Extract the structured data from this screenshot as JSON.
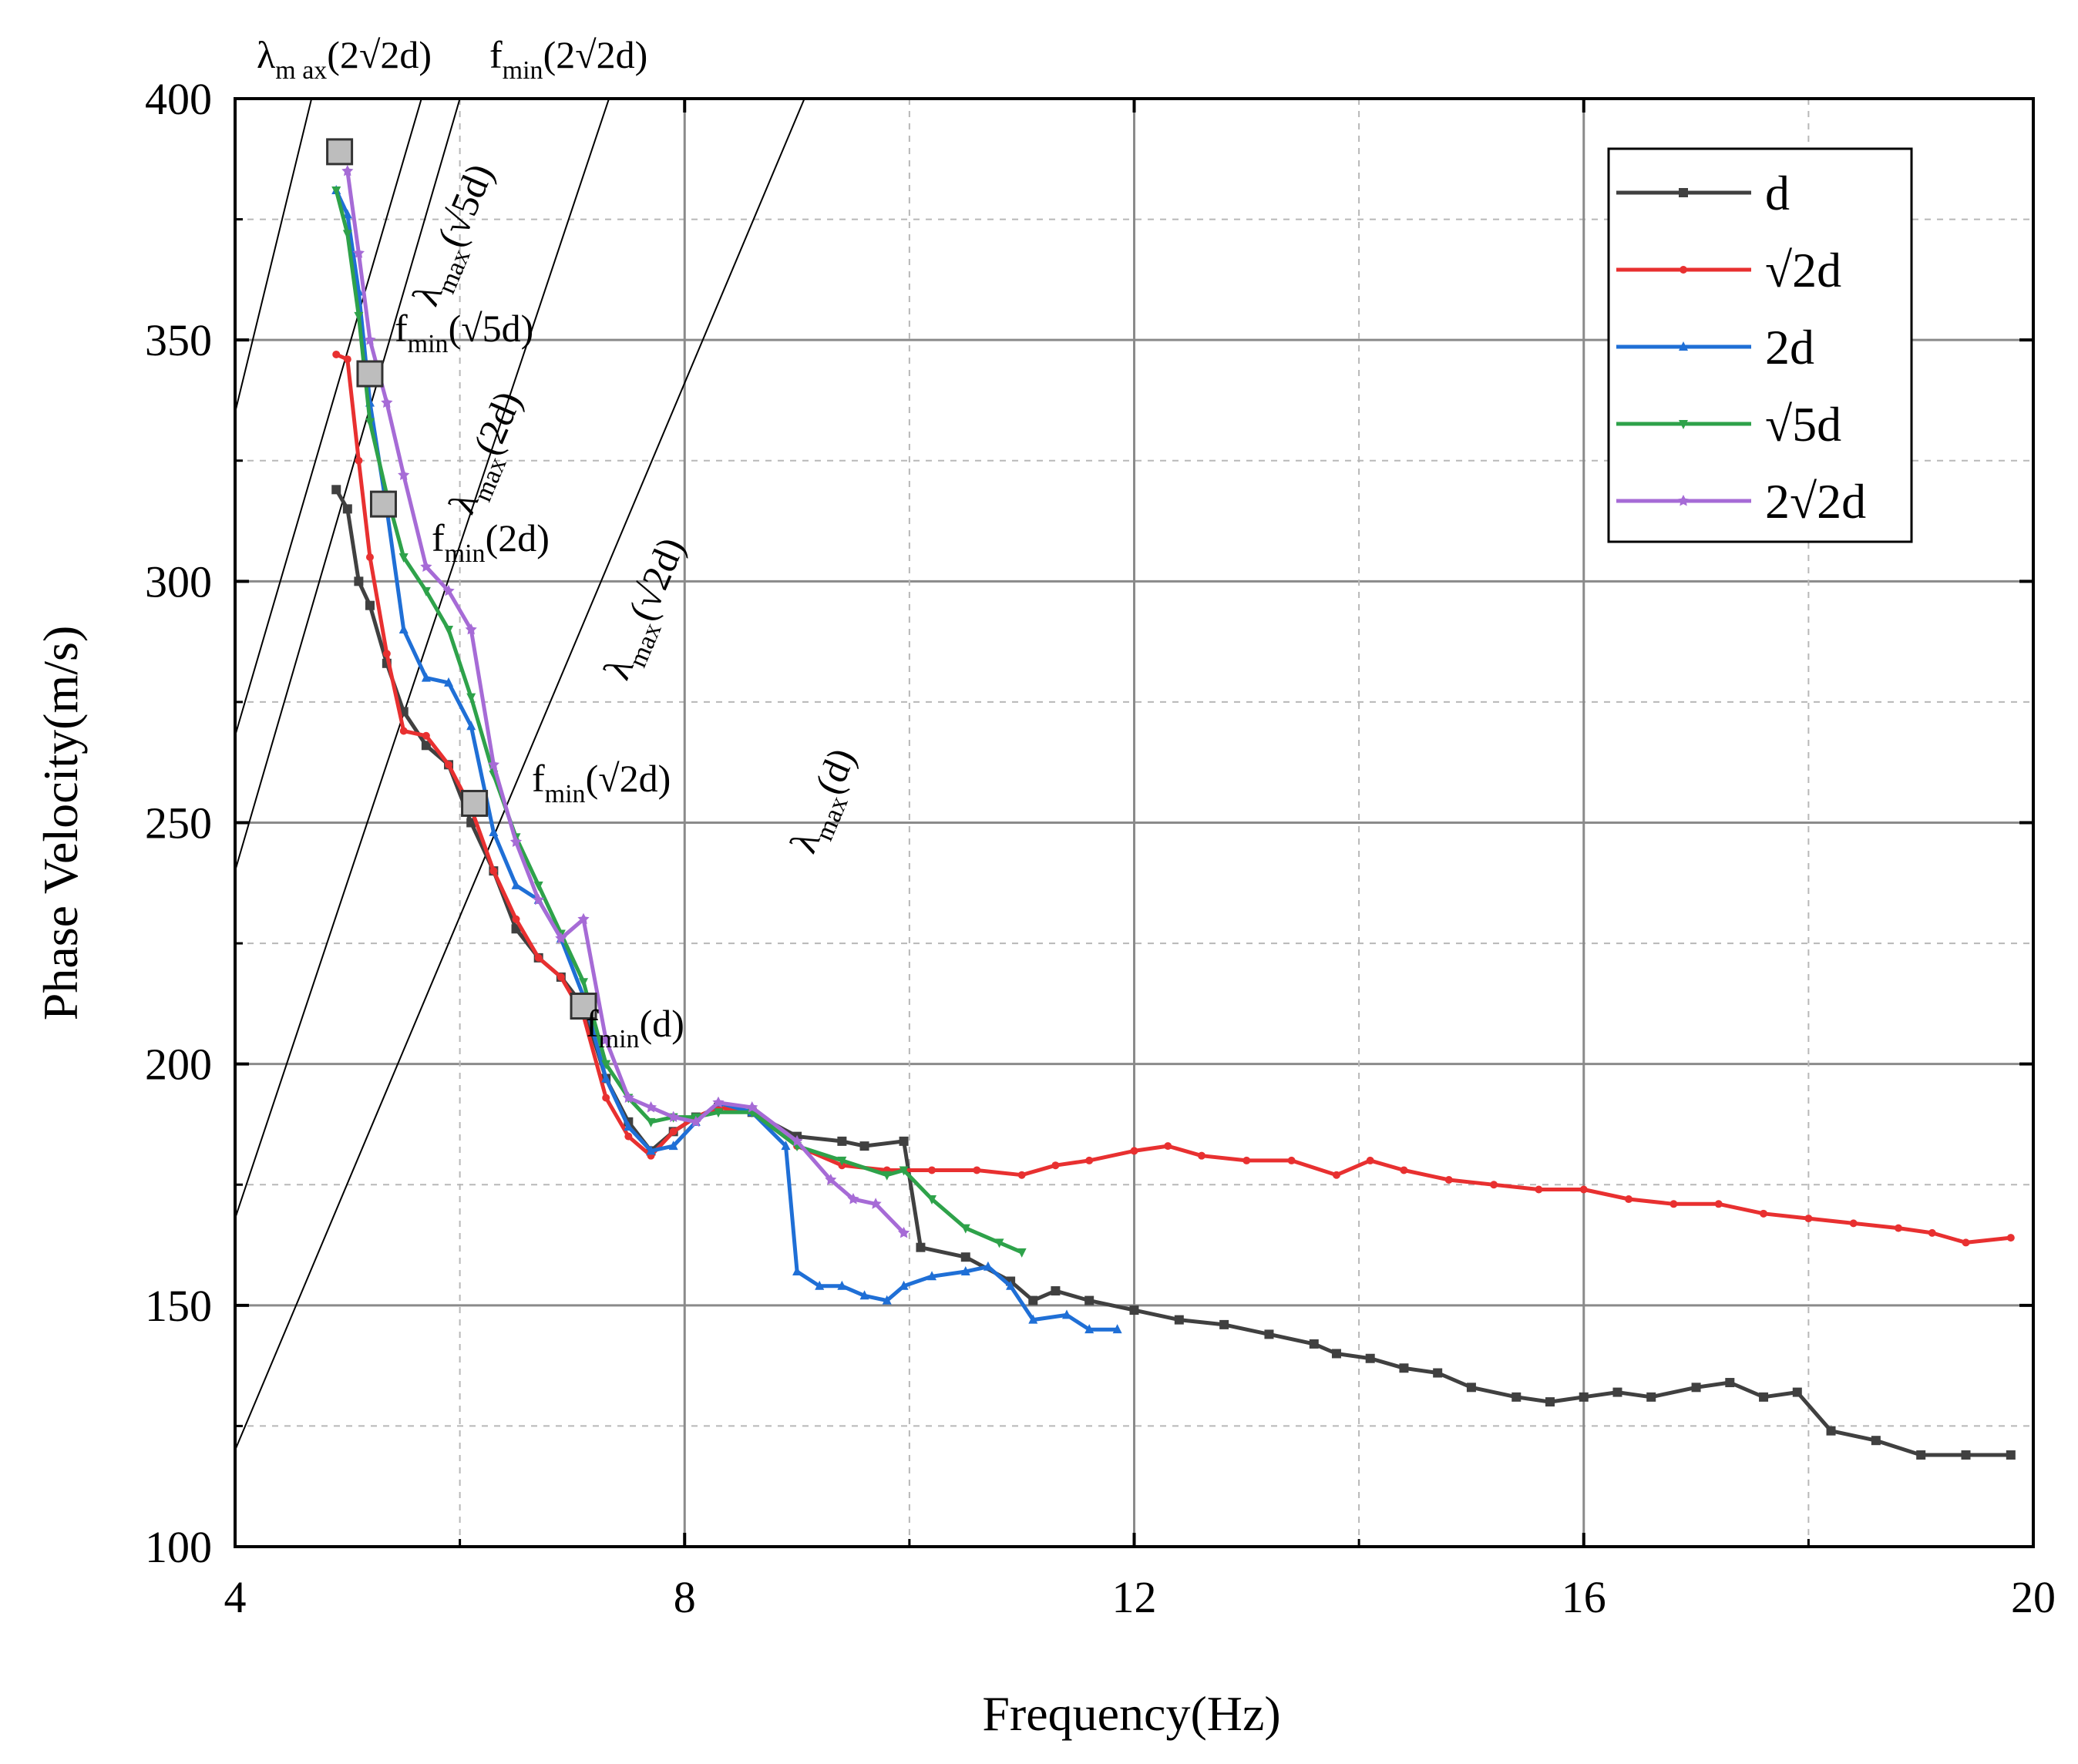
{
  "chart_data": {
    "type": "line",
    "xlabel": "Frequency(Hz)",
    "ylabel": "Phase Velocity(m/s)",
    "xlim": [
      4,
      20
    ],
    "ylim": [
      100,
      400
    ],
    "xticks": [
      "4",
      "8",
      "12",
      "16",
      "20"
    ],
    "yticks": [
      "100",
      "150",
      "200",
      "250",
      "300",
      "350",
      "400"
    ],
    "grid": true,
    "legend_position": "top-right",
    "series": [
      {
        "name": "d",
        "color": "#404040",
        "marker": "square",
        "points": [
          [
            4.9,
            319
          ],
          [
            5.0,
            315
          ],
          [
            5.1,
            300
          ],
          [
            5.2,
            295
          ],
          [
            5.35,
            283
          ],
          [
            5.5,
            273
          ],
          [
            5.7,
            266
          ],
          [
            5.9,
            262
          ],
          [
            6.1,
            250
          ],
          [
            6.3,
            240
          ],
          [
            6.5,
            228
          ],
          [
            6.7,
            222
          ],
          [
            6.9,
            218
          ],
          [
            7.1,
            212
          ],
          [
            7.3,
            197
          ],
          [
            7.5,
            188
          ],
          [
            7.7,
            182
          ],
          [
            7.9,
            186
          ],
          [
            8.1,
            189
          ],
          [
            8.3,
            191
          ],
          [
            8.6,
            190
          ],
          [
            9.0,
            185
          ],
          [
            9.4,
            184
          ],
          [
            9.6,
            183
          ],
          [
            9.95,
            184
          ],
          [
            10.1,
            162
          ],
          [
            10.5,
            160
          ],
          [
            10.9,
            155
          ],
          [
            11.1,
            151
          ],
          [
            11.3,
            153
          ],
          [
            11.6,
            151
          ],
          [
            12.0,
            149
          ],
          [
            12.4,
            147
          ],
          [
            12.8,
            146
          ],
          [
            13.2,
            144
          ],
          [
            13.6,
            142
          ],
          [
            13.8,
            140
          ],
          [
            14.1,
            139
          ],
          [
            14.4,
            137
          ],
          [
            14.7,
            136
          ],
          [
            15.0,
            133
          ],
          [
            15.4,
            131
          ],
          [
            15.7,
            130
          ],
          [
            16.0,
            131
          ],
          [
            16.3,
            132
          ],
          [
            16.6,
            131
          ],
          [
            17.0,
            133
          ],
          [
            17.3,
            134
          ],
          [
            17.6,
            131
          ],
          [
            17.9,
            132
          ],
          [
            18.2,
            124
          ],
          [
            18.6,
            122
          ],
          [
            19.0,
            119
          ],
          [
            19.4,
            119
          ],
          [
            19.8,
            119
          ]
        ]
      },
      {
        "name": "√2d",
        "color": "#e83030",
        "marker": "dot",
        "points": [
          [
            4.9,
            347
          ],
          [
            5.0,
            346
          ],
          [
            5.1,
            325
          ],
          [
            5.2,
            305
          ],
          [
            5.35,
            285
          ],
          [
            5.5,
            269
          ],
          [
            5.7,
            268
          ],
          [
            5.9,
            262
          ],
          [
            6.1,
            253
          ],
          [
            6.3,
            240
          ],
          [
            6.5,
            230
          ],
          [
            6.7,
            222
          ],
          [
            6.9,
            218
          ],
          [
            7.1,
            210
          ],
          [
            7.3,
            193
          ],
          [
            7.5,
            185
          ],
          [
            7.7,
            181
          ],
          [
            7.9,
            186
          ],
          [
            8.1,
            189
          ],
          [
            8.3,
            191
          ],
          [
            8.6,
            190
          ],
          [
            9.0,
            183
          ],
          [
            9.4,
            179
          ],
          [
            9.8,
            178
          ],
          [
            10.2,
            178
          ],
          [
            10.6,
            178
          ],
          [
            11.0,
            177
          ],
          [
            11.3,
            179
          ],
          [
            11.6,
            180
          ],
          [
            12.0,
            182
          ],
          [
            12.3,
            183
          ],
          [
            12.6,
            181
          ],
          [
            13.0,
            180
          ],
          [
            13.4,
            180
          ],
          [
            13.8,
            177
          ],
          [
            14.1,
            180
          ],
          [
            14.4,
            178
          ],
          [
            14.8,
            176
          ],
          [
            15.2,
            175
          ],
          [
            15.6,
            174
          ],
          [
            16.0,
            174
          ],
          [
            16.4,
            172
          ],
          [
            16.8,
            171
          ],
          [
            17.2,
            171
          ],
          [
            17.6,
            169
          ],
          [
            18.0,
            168
          ],
          [
            18.4,
            167
          ],
          [
            18.8,
            166
          ],
          [
            19.1,
            165
          ],
          [
            19.4,
            163
          ],
          [
            19.8,
            164
          ]
        ]
      },
      {
        "name": "2d",
        "color": "#1f6fd6",
        "marker": "triangle",
        "points": [
          [
            4.9,
            381
          ],
          [
            5.0,
            376
          ],
          [
            5.1,
            360
          ],
          [
            5.2,
            337
          ],
          [
            5.35,
            315
          ],
          [
            5.5,
            290
          ],
          [
            5.7,
            280
          ],
          [
            5.9,
            279
          ],
          [
            6.1,
            270
          ],
          [
            6.3,
            248
          ],
          [
            6.5,
            237
          ],
          [
            6.7,
            234
          ],
          [
            6.9,
            226
          ],
          [
            7.1,
            214
          ],
          [
            7.3,
            197
          ],
          [
            7.5,
            187
          ],
          [
            7.7,
            182
          ],
          [
            7.9,
            183
          ],
          [
            8.1,
            188
          ],
          [
            8.3,
            192
          ],
          [
            8.6,
            190
          ],
          [
            8.9,
            183
          ],
          [
            9.0,
            157
          ],
          [
            9.2,
            154
          ],
          [
            9.4,
            154
          ],
          [
            9.6,
            152
          ],
          [
            9.8,
            151
          ],
          [
            9.95,
            154
          ],
          [
            10.2,
            156
          ],
          [
            10.5,
            157
          ],
          [
            10.7,
            158
          ],
          [
            10.9,
            154
          ],
          [
            11.1,
            147
          ],
          [
            11.4,
            148
          ],
          [
            11.6,
            145
          ],
          [
            11.85,
            145
          ]
        ]
      },
      {
        "name": "√5d",
        "color": "#2ea24a",
        "marker": "inverted-triangle",
        "points": [
          [
            4.9,
            381
          ],
          [
            5.0,
            372
          ],
          [
            5.1,
            355
          ],
          [
            5.2,
            333
          ],
          [
            5.35,
            318
          ],
          [
            5.5,
            305
          ],
          [
            5.7,
            298
          ],
          [
            5.9,
            290
          ],
          [
            6.1,
            276
          ],
          [
            6.3,
            260
          ],
          [
            6.5,
            247
          ],
          [
            6.7,
            237
          ],
          [
            6.9,
            227
          ],
          [
            7.1,
            217
          ],
          [
            7.3,
            200
          ],
          [
            7.5,
            193
          ],
          [
            7.7,
            188
          ],
          [
            7.9,
            189
          ],
          [
            8.1,
            189
          ],
          [
            8.3,
            190
          ],
          [
            8.6,
            190
          ],
          [
            9.0,
            183
          ],
          [
            9.4,
            180
          ],
          [
            9.8,
            177
          ],
          [
            9.95,
            178
          ],
          [
            10.2,
            172
          ],
          [
            10.5,
            166
          ],
          [
            10.8,
            163
          ],
          [
            11.0,
            161
          ]
        ]
      },
      {
        "name": "2√2d",
        "color": "#a66bd6",
        "marker": "star",
        "points": [
          [
            5.0,
            385
          ],
          [
            5.1,
            368
          ],
          [
            5.2,
            350
          ],
          [
            5.35,
            337
          ],
          [
            5.5,
            322
          ],
          [
            5.7,
            303
          ],
          [
            5.9,
            298
          ],
          [
            6.1,
            290
          ],
          [
            6.3,
            262
          ],
          [
            6.5,
            246
          ],
          [
            6.7,
            234
          ],
          [
            6.9,
            226
          ],
          [
            7.1,
            230
          ],
          [
            7.3,
            205
          ],
          [
            7.5,
            193
          ],
          [
            7.7,
            191
          ],
          [
            7.9,
            189
          ],
          [
            8.1,
            188
          ],
          [
            8.3,
            192
          ],
          [
            8.6,
            191
          ],
          [
            9.0,
            184
          ],
          [
            9.3,
            176
          ],
          [
            9.5,
            172
          ],
          [
            9.7,
            171
          ],
          [
            9.95,
            165
          ]
        ]
      }
    ],
    "resolution_lines": [
      {
        "label": "λmax(2√2d)",
        "points": [
          [
            4.0,
            335
          ],
          [
            4.9,
            421
          ]
        ]
      },
      {
        "label": "λmax(√5d)",
        "points": [
          [
            4.0,
            268
          ],
          [
            6.5,
            467
          ]
        ]
      },
      {
        "label": "λmax(2d)",
        "points": [
          [
            4.0,
            240
          ],
          [
            6.75,
            460
          ]
        ]
      },
      {
        "label": "λmax(√2d)",
        "points": [
          [
            4.0,
            168
          ],
          [
            7.8,
            433
          ]
        ]
      },
      {
        "label": "λmax(d)",
        "points": [
          [
            4.0,
            120
          ],
          [
            9.5,
            424
          ]
        ]
      }
    ],
    "key_points": [
      {
        "label": "λmax(2√2d)",
        "x": 4.93,
        "y": 389
      },
      {
        "label": "fmin(√5d)",
        "x": 5.2,
        "y": 343
      },
      {
        "label": "fmin(2d)",
        "x": 5.32,
        "y": 316
      },
      {
        "label": "fmin(√2d)",
        "x": 6.13,
        "y": 254
      },
      {
        "label": "fmin(d)",
        "x": 7.1,
        "y": 212
      }
    ],
    "annotations": [
      {
        "id": "lmax-2r2d",
        "base": "λ",
        "sub": "m ax",
        "arg": "(2√2d)"
      },
      {
        "id": "fmin-2r2d",
        "base": "f",
        "sub": "min",
        "arg": "(2√2d)"
      },
      {
        "id": "lmax-r5d",
        "base": "λ",
        "sub": "max",
        "arg": "(√5d)"
      },
      {
        "id": "fmin-r5d",
        "base": "f",
        "sub": "min",
        "arg": "(√5d)"
      },
      {
        "id": "lmax-2d",
        "base": "λ",
        "sub": "max",
        "arg": "(2d)"
      },
      {
        "id": "fmin-2d",
        "base": "f",
        "sub": "min",
        "arg": "(2d)"
      },
      {
        "id": "lmax-r2d",
        "base": "λ",
        "sub": "max",
        "arg": "(√2d)"
      },
      {
        "id": "fmin-r2d",
        "base": "f",
        "sub": "min",
        "arg": "(√2d)"
      },
      {
        "id": "lmax-d",
        "base": "λ",
        "sub": "max",
        "arg": "(d)"
      },
      {
        "id": "fmin-d",
        "base": "f",
        "sub": "min",
        "arg": "(d)"
      }
    ]
  }
}
